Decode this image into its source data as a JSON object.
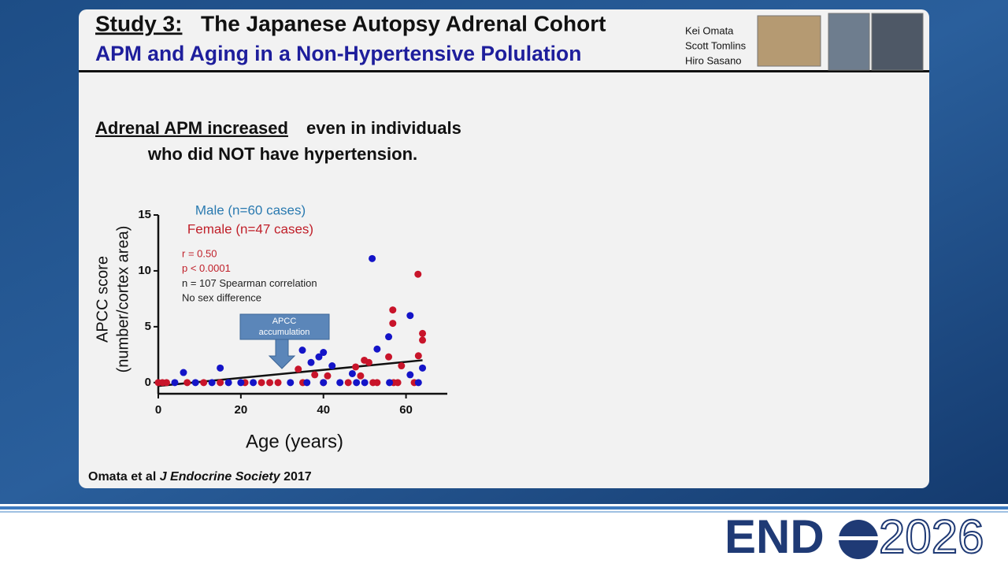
{
  "header": {
    "title_prefix": "Study 3:",
    "title": "The Japanese Autopsy Adrenal Cohort",
    "subtitle": "APM and Aging in a Non-Hypertensive Polulation",
    "authors": [
      "Kei Omata",
      "Scott Tomlins",
      "Hiro Sasano"
    ]
  },
  "statement": {
    "underlined": "Adrenal APM increased ",
    "rest": "even in individuals",
    "line2": "who did NOT have hypertension."
  },
  "citation": {
    "authors": "Omata et al ",
    "journal": "J Endocrine Society",
    "year": " 2017"
  },
  "footer": {
    "logo_left": "END",
    "logo_right": "2026"
  },
  "chart_data": {
    "type": "scatter",
    "x_label": "Age (years)",
    "y_label": [
      "APCC score",
      "(number/cortex area)"
    ],
    "xlim": [
      0,
      70
    ],
    "xticks": [
      0,
      20,
      40,
      60
    ],
    "ylim": [
      -1,
      15
    ],
    "yticks": [
      0,
      5,
      10,
      15
    ],
    "annotations": [
      {
        "text": "r = 0.50",
        "color": "#c0202a"
      },
      {
        "text": "p < 0.0001",
        "color": "#c0202a"
      },
      {
        "text": "n = 107  Spearman correlation",
        "color": "#222222"
      },
      {
        "text": "No sex difference",
        "color": "#222222"
      }
    ],
    "arrow_label": [
      "APCC",
      "accumulation"
    ],
    "series": [
      {
        "name": "Female (n=47 cases)",
        "color": "#c8142a",
        "label_color": "#c0202a",
        "x": [
          0,
          1,
          2,
          7,
          11,
          15,
          21,
          25,
          27,
          29,
          35,
          40,
          46,
          52,
          53,
          57,
          58,
          62,
          33.9,
          37.9,
          41,
          47.8,
          49.9,
          51,
          49,
          55.8,
          56.8,
          56.8,
          58.9,
          62.9,
          64,
          64,
          63
        ],
        "values": [
          0,
          0,
          0,
          0,
          0,
          0,
          0,
          0,
          0,
          0,
          0,
          0,
          0,
          0,
          0,
          0,
          0,
          0,
          1.2,
          0.7,
          0.6,
          1.4,
          2.0,
          1.8,
          0.6,
          2.3,
          6.5,
          5.3,
          1.5,
          9.7,
          4.4,
          3.8,
          2.4
        ]
      },
      {
        "name": "Male (n=60 cases)",
        "color": "#1414c8",
        "label_color": "#2a7ab0",
        "x": [
          4,
          9,
          13,
          17,
          20,
          23,
          32,
          36,
          40,
          44,
          48,
          50,
          56,
          63,
          6.1,
          15,
          34.9,
          40,
          38.9,
          42.1,
          37,
          51.8,
          53,
          55.8,
          61,
          64,
          61,
          47
        ],
        "values": [
          0,
          0,
          0,
          0,
          0,
          0,
          0,
          0,
          0,
          0,
          0,
          0,
          0,
          0,
          0.9,
          1.3,
          2.9,
          2.7,
          2.3,
          1.5,
          1.8,
          11.1,
          3.0,
          4.1,
          6.0,
          1.3,
          0.7,
          0.8
        ]
      }
    ],
    "trendline": {
      "x": [
        0,
        64
      ],
      "values": [
        -0.3,
        2.0
      ],
      "color": "#111111"
    }
  }
}
